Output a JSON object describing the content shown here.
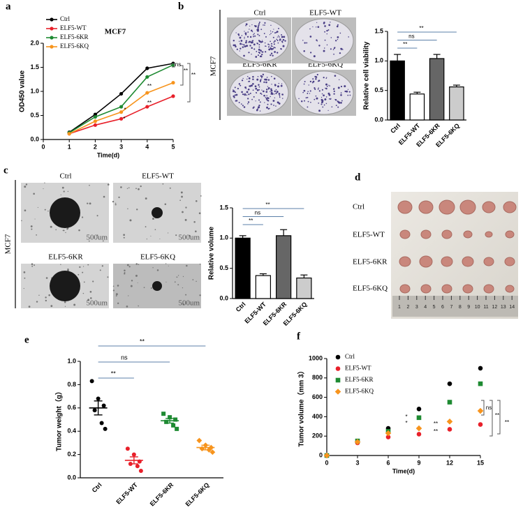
{
  "panels": [
    "a",
    "b",
    "c",
    "d",
    "e",
    "f"
  ],
  "images": {
    "b": {
      "row_label": "MCF7",
      "labels": [
        "Ctrl",
        "ELF5-WT",
        "ELF5-6KR",
        "ELF5-6KQ"
      ]
    },
    "c": {
      "row_label": "MCF7",
      "labels": [
        "Ctrl",
        "ELF5-WT",
        "ELF5-6KR",
        "ELF5-6KQ"
      ],
      "scale_bar": "500um"
    },
    "d": {
      "labels": [
        "Ctrl",
        "ELF5-WT",
        "ELF5-6KR",
        "ELF5-6KQ"
      ],
      "ruler": [
        1,
        2,
        3,
        4,
        5,
        6,
        7,
        8,
        9,
        10,
        11,
        12,
        13,
        14
      ]
    }
  },
  "chart_data": [
    {
      "type": "line",
      "title": "MCF7",
      "xlabel": "Time(d)",
      "ylabel": "OD450 value",
      "x": [
        1,
        2,
        3,
        4,
        5
      ],
      "xlim": [
        0,
        5
      ],
      "xticks": [
        0,
        1,
        2,
        3,
        4,
        5
      ],
      "ylim": [
        0,
        2
      ],
      "yticks": [
        {
          "value": 0,
          "label": "0.0"
        },
        0.5,
        {
          "value": 1,
          "label": "1.0"
        },
        1.5,
        {
          "value": 2,
          "label": "2.0"
        }
      ],
      "series": [
        {
          "name": "Ctrl",
          "color": "#000000",
          "values": [
            0.15,
            0.52,
            0.95,
            1.48,
            1.58
          ]
        },
        {
          "name": "ELF5-WT",
          "color": "#e8202a",
          "values": [
            0.12,
            0.3,
            0.43,
            0.68,
            0.9
          ]
        },
        {
          "name": "ELF5-6KR",
          "color": "#1e8a32",
          "values": [
            0.14,
            0.47,
            0.68,
            1.3,
            1.55
          ]
        },
        {
          "name": "ELF5-6KQ",
          "color": "#f7941d",
          "values": [
            0.12,
            0.38,
            0.57,
            0.97,
            1.18
          ]
        }
      ],
      "annotations": [
        "ns",
        "**",
        "**",
        "*",
        "*",
        "**",
        "**"
      ]
    },
    {
      "type": "bar",
      "ylabel": "Relative cell viability",
      "categories": [
        "Ctrl",
        "ELF5-WT",
        "ELF5-6KR",
        "ELF5-6KQ"
      ],
      "values": [
        1.0,
        0.44,
        1.04,
        0.56
      ],
      "errors": [
        0.11,
        0.03,
        0.07,
        0.03
      ],
      "colors": [
        "#000000",
        "#ffffff",
        "#666666",
        "#cccccc"
      ],
      "ylim": [
        0,
        1.5
      ],
      "yticks": [
        {
          "value": 0,
          "label": "0.0"
        },
        0.5,
        {
          "value": 1,
          "label": "1.0"
        },
        1.5
      ],
      "annotations": [
        "**",
        "ns",
        "**"
      ]
    },
    {
      "type": "bar",
      "ylabel": "Relative volume",
      "categories": [
        "Ctrl",
        "ELF5-WT",
        "ELF5-6KR",
        "ELF5-6KQ"
      ],
      "values": [
        1.0,
        0.38,
        1.04,
        0.34
      ],
      "errors": [
        0.04,
        0.03,
        0.1,
        0.05
      ],
      "colors": [
        "#000000",
        "#ffffff",
        "#666666",
        "#cccccc"
      ],
      "ylim": [
        0,
        1.5
      ],
      "yticks": [
        {
          "value": 0,
          "label": "0.0"
        },
        0.5,
        {
          "value": 1,
          "label": "1.0"
        },
        1.5
      ],
      "annotations": [
        "**",
        "ns",
        "**"
      ]
    },
    {
      "type": "strip",
      "ylabel": "Tumor weight（g）",
      "categories": [
        "Ctrl",
        "ELF5-WT",
        "ELF5-6KR",
        "ELF5-6KQ"
      ],
      "values": [
        [
          0.83,
          0.68,
          0.62,
          0.58,
          0.47,
          0.42
        ],
        [
          0.25,
          0.2,
          0.14,
          0.12,
          0.1,
          0.06
        ],
        [
          0.55,
          0.52,
          0.5,
          0.48,
          0.45,
          0.42
        ],
        [
          0.32,
          0.28,
          0.26,
          0.25,
          0.24,
          0.22
        ]
      ],
      "means": [
        0.6,
        0.15,
        0.49,
        0.26
      ],
      "errors": [
        0.06,
        0.03,
        0.02,
        0.02
      ],
      "colors": [
        "#000000",
        "#e8202a",
        "#1e8a32",
        "#f7941d"
      ],
      "markers": [
        "circle",
        "circle",
        "square",
        "diamond"
      ],
      "ylim": [
        0,
        1
      ],
      "yticks": [
        {
          "value": 0,
          "label": "0.0"
        },
        0.2,
        0.4,
        0.6,
        0.8,
        {
          "value": 1,
          "label": "1.0"
        }
      ],
      "annotations": [
        "**",
        "ns",
        "**"
      ]
    },
    {
      "type": "scatter",
      "xlabel": "Time(d)",
      "ylabel": "Tumor volume（mm 3）",
      "x": [
        0,
        3,
        6,
        9,
        12,
        15
      ],
      "xlim": [
        0,
        15
      ],
      "xticks": [
        0,
        3,
        6,
        9,
        12,
        15
      ],
      "ylim": [
        0,
        1000
      ],
      "yticks": [
        0,
        200,
        400,
        600,
        800,
        1000
      ],
      "series": [
        {
          "name": "Ctrl",
          "color": "#000000",
          "marker": "circle",
          "values": [
            0,
            140,
            280,
            480,
            740,
            900
          ]
        },
        {
          "name": "ELF5-WT",
          "color": "#e8202a",
          "marker": "circle",
          "values": [
            0,
            130,
            190,
            220,
            270,
            320
          ]
        },
        {
          "name": "ELF5-6KR",
          "color": "#1e8a32",
          "marker": "square",
          "values": [
            0,
            150,
            250,
            390,
            550,
            740
          ]
        },
        {
          "name": "ELF5-6KQ",
          "color": "#f7941d",
          "marker": "diamond",
          "values": [
            0,
            140,
            230,
            280,
            350,
            460
          ]
        }
      ],
      "annotations": [
        "ns",
        "**",
        "**",
        "*",
        "*",
        "**",
        "**"
      ]
    }
  ]
}
